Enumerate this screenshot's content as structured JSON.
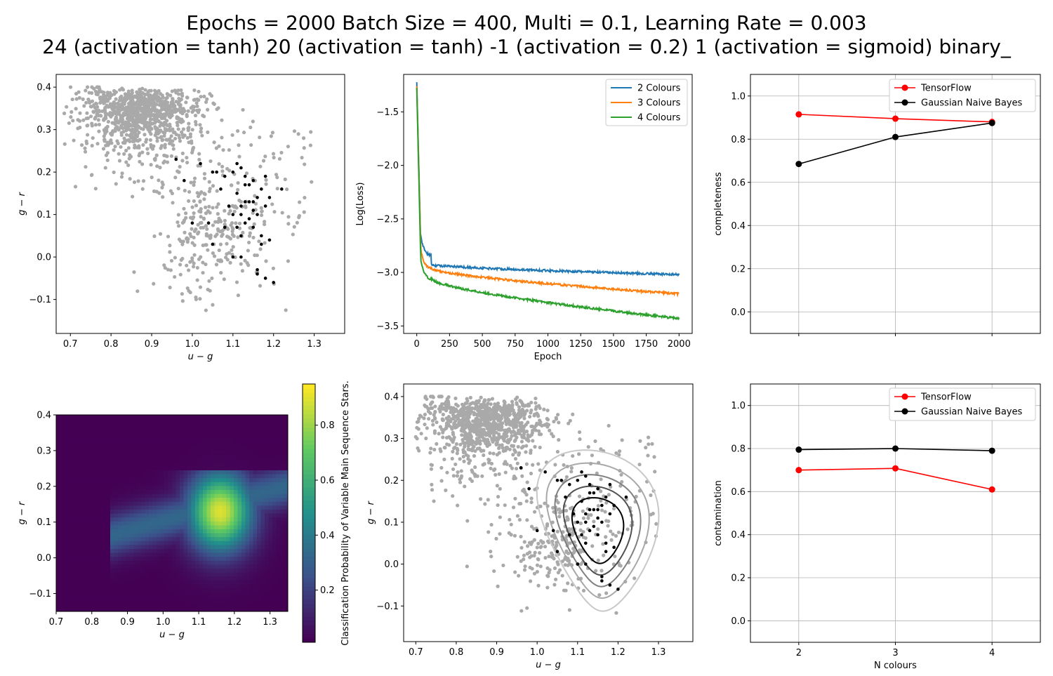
{
  "title": {
    "line1": "Epochs = 2000 Batch Size = 400, Multi = 0.1, Learning Rate = 0.003",
    "line2": "24 (activation = tanh) 20 (activation = tanh) -1 (activation = 0.2) 1 (activation = sigmoid) binary_"
  },
  "colors": {
    "grey": "#a9a9a9",
    "black": "#000000",
    "red": "#ff0000",
    "blue": "#1f77b4",
    "orange": "#ff7f0e",
    "green": "#2ca02c"
  },
  "chart_data": [
    {
      "id": "scatter-top",
      "type": "scatter",
      "xlabel": "u − g",
      "ylabel": "g − r",
      "xlim": [
        0.665,
        1.375
      ],
      "ylim": [
        -0.18,
        0.43
      ],
      "xticks": [
        "0.7",
        "0.8",
        "0.9",
        "1.0",
        "1.1",
        "1.2",
        "1.3"
      ],
      "yticks": [
        "−0.1",
        "0.0",
        "0.1",
        "0.2",
        "0.3",
        "0.4"
      ],
      "series": [
        {
          "color": "grey",
          "cloud": {
            "xc": 0.87,
            "xs": 0.07,
            "ymin": 0.2,
            "ymax": 0.4
          }
        },
        {
          "color": "black",
          "points": [
            [
              0.96,
              0.23
            ],
            [
              0.98,
              0.18
            ],
            [
              1.02,
              0.22
            ],
            [
              1.05,
              0.2
            ],
            [
              1.08,
              0.19
            ],
            [
              1.1,
              0.2
            ],
            [
              1.12,
              0.21
            ],
            [
              1.13,
              0.17
            ],
            [
              1.15,
              0.18
            ],
            [
              1.17,
              0.16
            ],
            [
              1.19,
              0.14
            ],
            [
              1.22,
              0.16
            ],
            [
              1.07,
              0.16
            ],
            [
              1.11,
              0.15
            ],
            [
              1.12,
              0.12
            ],
            [
              1.14,
              0.13
            ],
            [
              1.15,
              0.11
            ],
            [
              1.16,
              0.14
            ],
            [
              1.18,
              0.12
            ],
            [
              1.1,
              0.1
            ],
            [
              1.12,
              0.1
            ],
            [
              1.13,
              0.08
            ],
            [
              1.14,
              0.09
            ],
            [
              1.16,
              0.1
            ],
            [
              1.08,
              0.07
            ],
            [
              1.11,
              0.07
            ],
            [
              1.12,
              0.05
            ],
            [
              1.15,
              0.07
            ],
            [
              1.17,
              0.05
            ],
            [
              1.19,
              0.04
            ],
            [
              1.05,
              0.03
            ],
            [
              1.04,
              0.08
            ],
            [
              1.0,
              0.08
            ],
            [
              1.1,
              0.0
            ],
            [
              1.16,
              -0.03
            ],
            [
              1.16,
              -0.04
            ],
            [
              1.18,
              -0.05
            ],
            [
              1.2,
              -0.06
            ],
            [
              1.13,
              0.13
            ],
            [
              1.09,
              0.12
            ],
            [
              1.14,
              0.17
            ],
            [
              1.18,
              0.19
            ],
            [
              1.11,
              0.22
            ],
            [
              1.13,
              0.19
            ],
            [
              1.15,
              0.13
            ],
            [
              1.06,
              0.2
            ],
            [
              1.17,
              0.03
            ],
            [
              1.12,
              0.0
            ]
          ]
        }
      ]
    },
    {
      "id": "loss-curves",
      "type": "line",
      "xlabel": "Epoch",
      "ylabel": "Log(Loss)",
      "xlim": [
        -100,
        2100
      ],
      "ylim": [
        -3.57,
        -1.15
      ],
      "xticks": [
        "0",
        "250",
        "500",
        "750",
        "1000",
        "1250",
        "1500",
        "1750",
        "2000"
      ],
      "yticks": [
        "−3.5",
        "−3.0",
        "−2.5",
        "−2.0",
        "−1.5"
      ],
      "legend": "top-right",
      "series": [
        {
          "name": "2 Colours",
          "color": "blue",
          "start": -1.22,
          "plateau": -2.93,
          "end": -3.02
        },
        {
          "name": "3 Colours",
          "color": "orange",
          "start": -1.25,
          "plateau": -2.97,
          "end": -3.2
        },
        {
          "name": "4 Colours",
          "color": "green",
          "start": -1.27,
          "plateau": -3.07,
          "end": -3.43
        }
      ]
    },
    {
      "id": "completeness",
      "type": "line",
      "ylabel": "completeness",
      "x": [
        2,
        3,
        4
      ],
      "xlim": [
        1.5,
        4.5
      ],
      "ylim": [
        -0.1,
        1.1
      ],
      "xticks": [
        "2",
        "3",
        "4"
      ],
      "yticks": [
        "0.0",
        "0.2",
        "0.4",
        "0.6",
        "0.8",
        "1.0"
      ],
      "legend": "top-right",
      "series": [
        {
          "name": "TensorFlow",
          "color": "red",
          "values": [
            0.915,
            0.895,
            0.88
          ]
        },
        {
          "name": "Gaussian Naive Bayes",
          "color": "black",
          "values": [
            0.685,
            0.81,
            0.875
          ]
        }
      ]
    },
    {
      "id": "probability-map",
      "type": "heatmap",
      "xlabel": "u − g",
      "ylabel": "g − r",
      "xlim": [
        0.7,
        1.35
      ],
      "ylim": [
        -0.15,
        0.4
      ],
      "xticks": [
        "0.7",
        "0.8",
        "0.9",
        "1.0",
        "1.1",
        "1.2",
        "1.3"
      ],
      "yticks": [
        "−0.1",
        "0.0",
        "0.1",
        "0.2",
        "0.3",
        "0.4"
      ],
      "colorbar_label": "Classification Probability of Variable Main Sequence Stars.",
      "colorbar_ticks": [
        "0.2",
        "0.4",
        "0.6",
        "0.8"
      ],
      "value_range": [
        0.01,
        0.95
      ]
    },
    {
      "id": "scatter-contours",
      "type": "scatter",
      "xlabel": "u − g",
      "ylabel": "g − r",
      "xlim": [
        0.67,
        1.385
      ],
      "ylim": [
        -0.185,
        0.43
      ],
      "xticks": [
        "0.7",
        "0.8",
        "0.9",
        "1.0",
        "1.1",
        "1.2",
        "1.3"
      ],
      "yticks": [
        "−0.1",
        "0.0",
        "0.1",
        "0.2",
        "0.3",
        "0.4"
      ],
      "contour_levels": 5
    },
    {
      "id": "contamination",
      "type": "line",
      "xlabel": "N colours",
      "ylabel": "contamination",
      "x": [
        2,
        3,
        4
      ],
      "xlim": [
        1.5,
        4.5
      ],
      "ylim": [
        -0.1,
        1.1
      ],
      "xticks": [
        "2",
        "3",
        "4"
      ],
      "yticks": [
        "0.0",
        "0.2",
        "0.4",
        "0.6",
        "0.8",
        "1.0"
      ],
      "legend": "top-right",
      "series": [
        {
          "name": "TensorFlow",
          "color": "red",
          "values": [
            0.7,
            0.708,
            0.61
          ]
        },
        {
          "name": "Gaussian Naive Bayes",
          "color": "black",
          "values": [
            0.795,
            0.8,
            0.79
          ]
        }
      ]
    }
  ]
}
